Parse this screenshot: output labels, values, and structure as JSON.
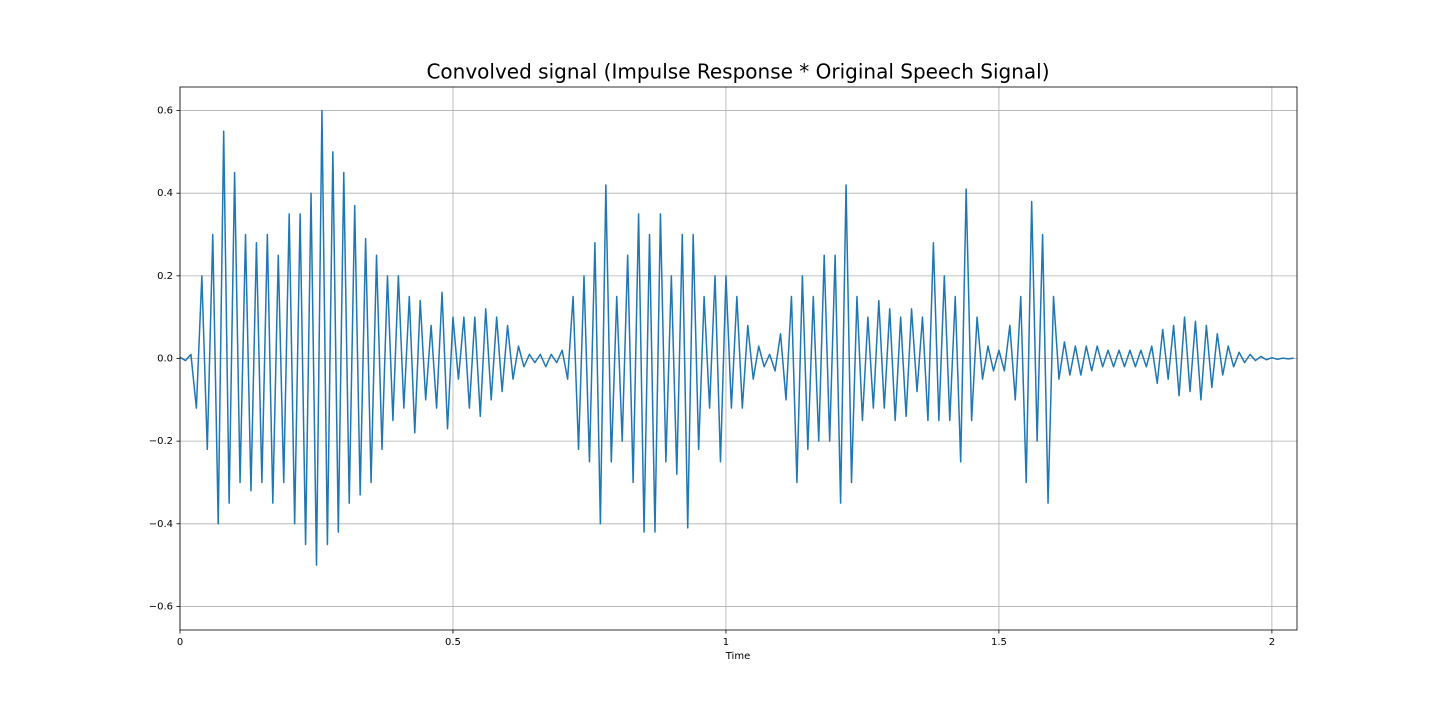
{
  "chart_data": {
    "type": "line",
    "title": "Convolved signal (Impulse Response * Original Speech Signal)",
    "xlabel": "Time",
    "color": "#1f77b4",
    "grid": true,
    "xlim": [
      0,
      2.046
    ],
    "ylim": [
      -0.657,
      0.657
    ],
    "xticks": [
      0,
      0.5,
      1,
      1.5,
      2
    ],
    "yticks": [
      {
        "value": -0.6,
        "label": "−0.6"
      },
      {
        "value": -0.4,
        "label": "−0.4"
      },
      {
        "value": -0.2,
        "label": "−0.2"
      },
      {
        "value": 0,
        "label": "0.0"
      },
      0.2,
      0.4,
      0.6
    ],
    "x": [
      0,
      0.01,
      0.02,
      0.03,
      0.04,
      0.05,
      0.06,
      0.07,
      0.08,
      0.09,
      0.1,
      0.11,
      0.12,
      0.13,
      0.14,
      0.15,
      0.16,
      0.17,
      0.18,
      0.19,
      0.2,
      0.21,
      0.22,
      0.23,
      0.24,
      0.25,
      0.26,
      0.27,
      0.28,
      0.29,
      0.3,
      0.31,
      0.32,
      0.33,
      0.34,
      0.35,
      0.36,
      0.37,
      0.38,
      0.39,
      0.4,
      0.41,
      0.42,
      0.43,
      0.44,
      0.45,
      0.46,
      0.47,
      0.48,
      0.49,
      0.5,
      0.51,
      0.52,
      0.53,
      0.54,
      0.55,
      0.56,
      0.57,
      0.58,
      0.59,
      0.6,
      0.61,
      0.62,
      0.63,
      0.64,
      0.65,
      0.66,
      0.67,
      0.68,
      0.69,
      0.7,
      0.71,
      0.72,
      0.73,
      0.74,
      0.75,
      0.76,
      0.77,
      0.78,
      0.79,
      0.8,
      0.81,
      0.82,
      0.83,
      0.84,
      0.85,
      0.86,
      0.87,
      0.88,
      0.89,
      0.9,
      0.91,
      0.92,
      0.93,
      0.94,
      0.95,
      0.96,
      0.97,
      0.98,
      0.99,
      1,
      1.01,
      1.02,
      1.03,
      1.04,
      1.05,
      1.06,
      1.07,
      1.08,
      1.09,
      1.1,
      1.11,
      1.12,
      1.13,
      1.14,
      1.15,
      1.16,
      1.17,
      1.18,
      1.19,
      1.2,
      1.21,
      1.22,
      1.23,
      1.24,
      1.25,
      1.26,
      1.27,
      1.28,
      1.29,
      1.3,
      1.31,
      1.32,
      1.33,
      1.34,
      1.35,
      1.36,
      1.37,
      1.38,
      1.39,
      1.4,
      1.41,
      1.42,
      1.43,
      1.44,
      1.45,
      1.46,
      1.47,
      1.48,
      1.49,
      1.5,
      1.51,
      1.52,
      1.53,
      1.54,
      1.55,
      1.56,
      1.57,
      1.58,
      1.59,
      1.6,
      1.61,
      1.62,
      1.63,
      1.64,
      1.65,
      1.66,
      1.67,
      1.68,
      1.69,
      1.7,
      1.71,
      1.72,
      1.73,
      1.74,
      1.75,
      1.76,
      1.77,
      1.78,
      1.79,
      1.8,
      1.81,
      1.82,
      1.83,
      1.84,
      1.85,
      1.86,
      1.87,
      1.88,
      1.89,
      1.9,
      1.91,
      1.92,
      1.93,
      1.94,
      1.95,
      1.96,
      1.97,
      1.98,
      1.99,
      2,
      2.01,
      2.02,
      2.03,
      2.04
    ],
    "values": [
      0.003,
      -0.005,
      0.01,
      -0.12,
      0.2,
      -0.22,
      0.3,
      -0.4,
      0.55,
      -0.35,
      0.45,
      -0.3,
      0.3,
      -0.32,
      0.28,
      -0.3,
      0.3,
      -0.35,
      0.25,
      -0.3,
      0.35,
      -0.4,
      0.35,
      -0.45,
      0.4,
      -0.5,
      0.6,
      -0.45,
      0.5,
      -0.42,
      0.45,
      -0.35,
      0.37,
      -0.33,
      0.29,
      -0.3,
      0.25,
      -0.22,
      0.2,
      -0.15,
      0.2,
      -0.12,
      0.15,
      -0.18,
      0.14,
      -0.1,
      0.08,
      -0.12,
      0.16,
      -0.17,
      0.1,
      -0.05,
      0.1,
      -0.12,
      0.1,
      -0.14,
      0.12,
      -0.1,
      0.1,
      -0.08,
      0.08,
      -0.05,
      0.03,
      -0.02,
      0.01,
      -0.01,
      0.01,
      -0.02,
      0.01,
      -0.01,
      0.02,
      -0.05,
      0.15,
      -0.22,
      0.2,
      -0.25,
      0.28,
      -0.4,
      0.42,
      -0.25,
      0.15,
      -0.2,
      0.25,
      -0.3,
      0.35,
      -0.42,
      0.3,
      -0.42,
      0.35,
      -0.25,
      0.2,
      -0.28,
      0.3,
      -0.41,
      0.3,
      -0.22,
      0.15,
      -0.12,
      0.2,
      -0.25,
      0.2,
      -0.12,
      0.15,
      -0.12,
      0.08,
      -0.05,
      0.03,
      -0.02,
      0.01,
      -0.03,
      0.06,
      -0.1,
      0.15,
      -0.3,
      0.2,
      -0.22,
      0.15,
      -0.2,
      0.25,
      -0.2,
      0.25,
      -0.35,
      0.42,
      -0.3,
      0.15,
      -0.15,
      0.1,
      -0.12,
      0.14,
      -0.12,
      0.12,
      -0.15,
      0.1,
      -0.14,
      0.12,
      -0.08,
      0.1,
      -0.15,
      0.28,
      -0.15,
      0.2,
      -0.15,
      0.15,
      -0.25,
      0.41,
      -0.15,
      0.1,
      -0.05,
      0.03,
      -0.03,
      0.02,
      -0.03,
      0.08,
      -0.1,
      0.15,
      -0.3,
      0.38,
      -0.2,
      0.3,
      -0.35,
      0.15,
      -0.05,
      0.04,
      -0.04,
      0.03,
      -0.04,
      0.03,
      -0.03,
      0.03,
      -0.02,
      0.02,
      -0.02,
      0.02,
      -0.02,
      0.02,
      -0.02,
      0.02,
      -0.02,
      0.03,
      -0.06,
      0.07,
      -0.05,
      0.08,
      -0.09,
      0.1,
      -0.08,
      0.09,
      -0.1,
      0.08,
      -0.07,
      0.06,
      -0.04,
      0.03,
      -0.02,
      0.015,
      -0.01,
      0.01,
      -0.005,
      0.005,
      -0.003,
      0.002,
      -0.002,
      0.001,
      -0.001,
      0.001
    ]
  }
}
